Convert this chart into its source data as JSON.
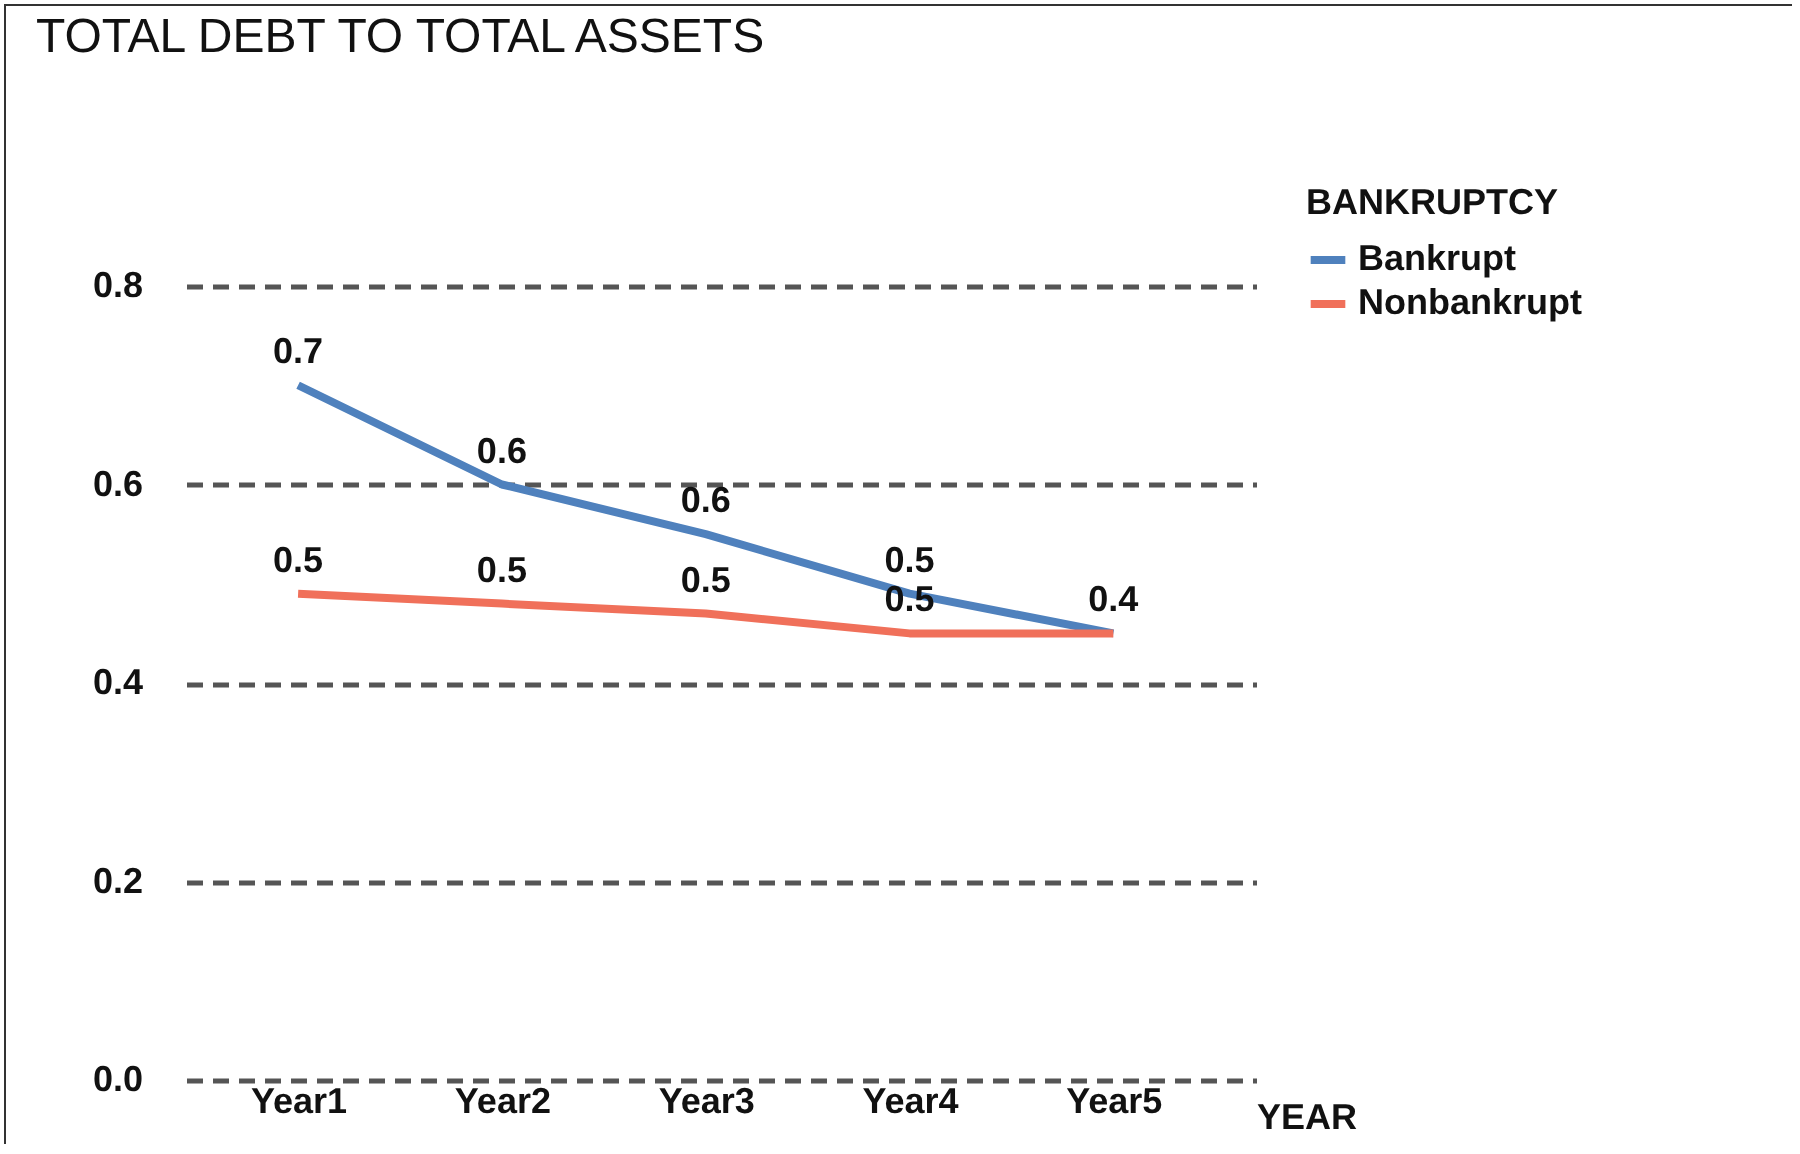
{
  "chart_data": {
    "type": "line",
    "title": "TOTAL DEBT TO TOTAL ASSETS",
    "xlabel": "YEAR",
    "legend_title": "BANKRUPTCY",
    "categories": [
      "Year1",
      "Year2",
      "Year3",
      "Year4",
      "Year5"
    ],
    "series": [
      {
        "name": "Bankrupt",
        "color": "#4f81bd",
        "values": [
          0.7,
          0.6,
          0.55,
          0.49,
          0.45
        ],
        "value_labels": [
          "0.7",
          "0.6",
          "0.6",
          "0.5",
          null
        ]
      },
      {
        "name": "Nonbankrupt",
        "color": "#f0705a",
        "values": [
          0.49,
          0.48,
          0.47,
          0.45,
          0.45
        ],
        "value_labels": [
          "0.5",
          "0.5",
          "0.5",
          "0.5",
          "0.4"
        ]
      }
    ],
    "ylim": [
      0,
      0.8
    ],
    "yticks": [
      {
        "value": 0,
        "label": "0.0"
      },
      {
        "value": 0.2,
        "label": "0.2"
      },
      {
        "value": 0.4,
        "label": "0.4"
      },
      {
        "value": 0.6,
        "label": "0.6"
      },
      {
        "value": 0.8,
        "label": "0.8"
      }
    ],
    "grid": "y",
    "legend": "top right",
    "marker": "none",
    "line_style": "solid"
  }
}
